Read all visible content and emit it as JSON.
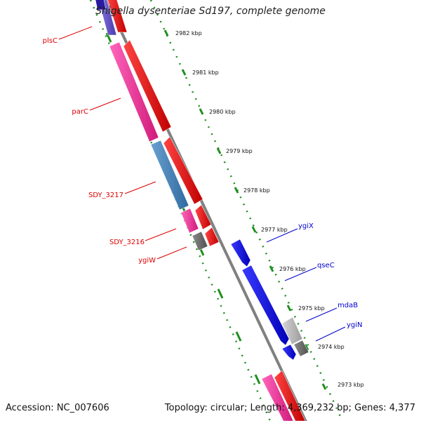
{
  "title": "Shigella dysenteriae Sd197, complete genome",
  "accession": "Accession: NC_007606",
  "summary": "Topology: circular; Length: 4,369,232 bp; Genes: 4,377",
  "ticks": [
    "2982 kbp",
    "2981 kbp",
    "2980 kbp",
    "2979 kbp",
    "2978 kbp",
    "2977 kbp",
    "2976 kbp",
    "2975 kbp",
    "2974 kbp",
    "2973 kbp"
  ],
  "left_labels": [
    "plsC",
    "parC",
    "SDY_3217",
    "SDY_3216",
    "ygiW"
  ],
  "right_labels": [
    "ygiX",
    "qseC",
    "mdaB",
    "ygiN"
  ],
  "colors": {
    "strand_line": "#7f7f7f",
    "tick_dots": "#1f8f1f",
    "forward_pink": "#ff3399",
    "forward_red": "#ff0000",
    "steel_blue": "#4682b4",
    "reverse_blue": "#0000ff",
    "gray_light": "#b3b3b3",
    "gray_dark": "#6b6b6b",
    "purple": "#6a5acd",
    "label_red": "#dd0000",
    "label_blue": "#0000cc"
  }
}
